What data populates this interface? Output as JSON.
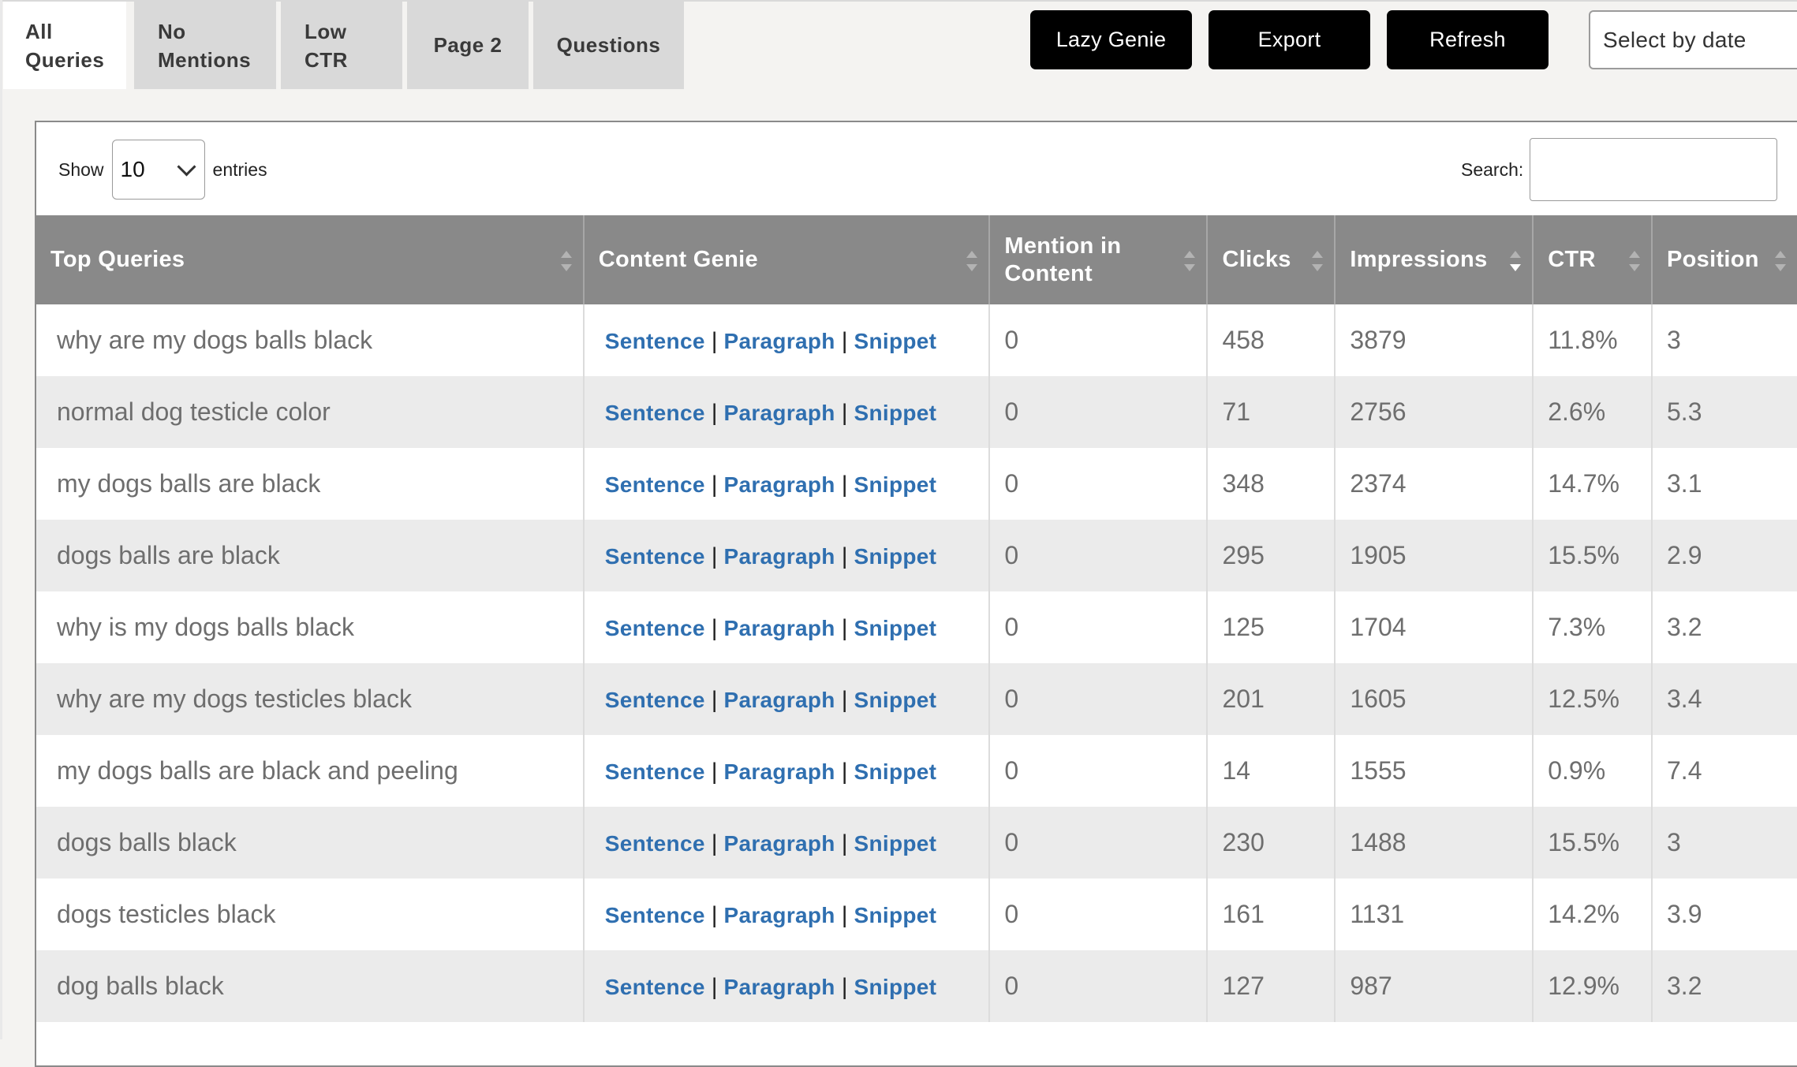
{
  "tabs": [
    {
      "label_line1": "All",
      "label_line2": "Queries"
    },
    {
      "label_line1": "No",
      "label_line2": "Mentions"
    },
    {
      "label_line1": "Low",
      "label_line2": "CTR"
    },
    {
      "label": "Page 2"
    },
    {
      "label": "Questions"
    }
  ],
  "actions": {
    "lazy_genie": "Lazy Genie",
    "export": "Export",
    "refresh": "Refresh",
    "date_select": "Select by date"
  },
  "length_control": {
    "show_label": "Show",
    "value": "10",
    "entries_label": "entries"
  },
  "search": {
    "label": "Search:",
    "value": ""
  },
  "table": {
    "headers": {
      "query": "Top Queries",
      "genie": "Content Genie",
      "mention_line1": "Mention in",
      "mention_line2": "Content",
      "clicks": "Clicks",
      "impressions": "Impressions",
      "ctr": "CTR",
      "position": "Position"
    },
    "genie_links": {
      "sentence": "Sentence",
      "paragraph": "Paragraph",
      "snippet": "Snippet",
      "separator": "|"
    },
    "rows": [
      {
        "query": "why are my dogs balls black",
        "mention": "0",
        "clicks": "458",
        "impressions": "3879",
        "ctr": "11.8%",
        "position": "3"
      },
      {
        "query": "normal dog testicle color",
        "mention": "0",
        "clicks": "71",
        "impressions": "2756",
        "ctr": "2.6%",
        "position": "5.3"
      },
      {
        "query": "my dogs balls are black",
        "mention": "0",
        "clicks": "348",
        "impressions": "2374",
        "ctr": "14.7%",
        "position": "3.1"
      },
      {
        "query": "dogs balls are black",
        "mention": "0",
        "clicks": "295",
        "impressions": "1905",
        "ctr": "15.5%",
        "position": "2.9"
      },
      {
        "query": "why is my dogs balls black",
        "mention": "0",
        "clicks": "125",
        "impressions": "1704",
        "ctr": "7.3%",
        "position": "3.2"
      },
      {
        "query": "why are my dogs testicles black",
        "mention": "0",
        "clicks": "201",
        "impressions": "1605",
        "ctr": "12.5%",
        "position": "3.4"
      },
      {
        "query": "my dogs balls are black and peeling",
        "mention": "0",
        "clicks": "14",
        "impressions": "1555",
        "ctr": "0.9%",
        "position": "7.4"
      },
      {
        "query": "dogs balls black",
        "mention": "0",
        "clicks": "230",
        "impressions": "1488",
        "ctr": "15.5%",
        "position": "3"
      },
      {
        "query": "dogs testicles black",
        "mention": "0",
        "clicks": "161",
        "impressions": "1131",
        "ctr": "14.2%",
        "position": "3.9"
      },
      {
        "query": "dog balls black",
        "mention": "0",
        "clicks": "127",
        "impressions": "987",
        "ctr": "12.9%",
        "position": "3.2"
      }
    ]
  }
}
